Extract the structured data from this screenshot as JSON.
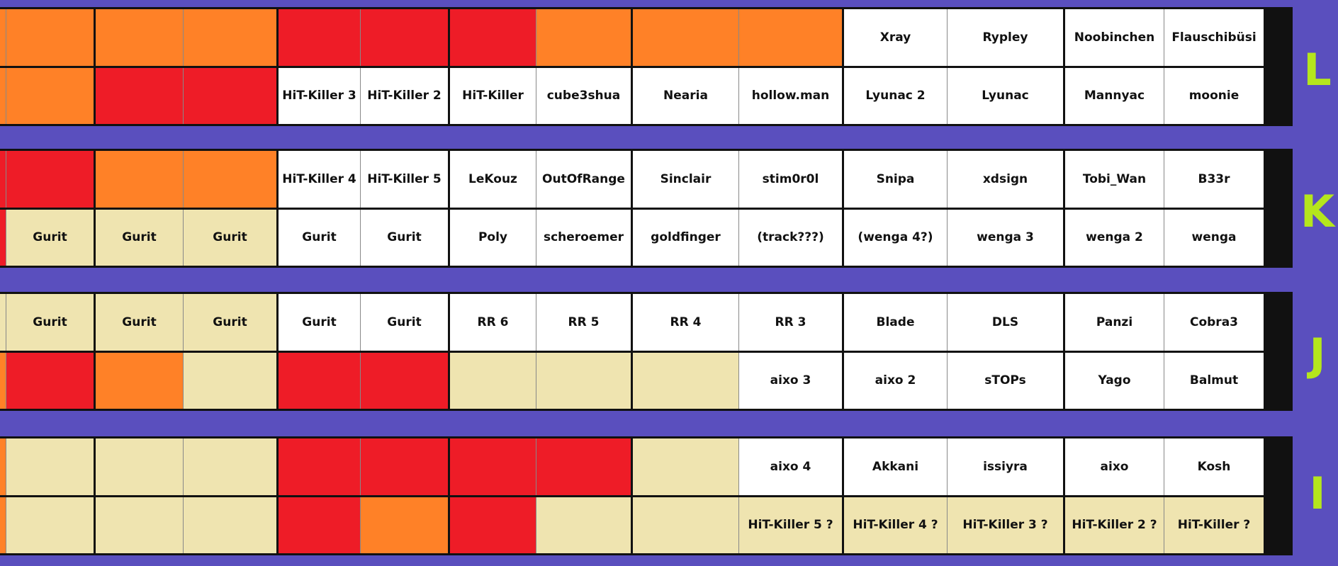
{
  "colors": {
    "background": "#5a4fbe",
    "white": "#ffffff",
    "orange": "#ff8127",
    "red": "#ee1c27",
    "tan": "#efe4b0",
    "letter": "#b5e61d"
  },
  "rows": [
    {
      "letter": "L",
      "top": [
        {
          "c": "o",
          "t": ""
        },
        {
          "c": "o",
          "t": ""
        },
        {
          "c": "o",
          "t": ""
        },
        {
          "c": "o",
          "t": ""
        },
        {
          "c": "r",
          "t": ""
        },
        {
          "c": "r",
          "t": ""
        },
        {
          "c": "r",
          "t": ""
        },
        {
          "c": "o",
          "t": ""
        },
        {
          "c": "o",
          "t": ""
        },
        {
          "c": "o",
          "t": ""
        },
        {
          "c": "w",
          "t": "Xray"
        },
        {
          "c": "w",
          "t": "Rypley"
        },
        {
          "c": "w",
          "t": "Noobinchen"
        },
        {
          "c": "w",
          "t": "Flauschibüsi"
        }
      ],
      "bottom": [
        {
          "c": "o",
          "t": ""
        },
        {
          "c": "o",
          "t": ""
        },
        {
          "c": "r",
          "t": ""
        },
        {
          "c": "r",
          "t": ""
        },
        {
          "c": "w",
          "t": "HiT-Killer 3"
        },
        {
          "c": "w",
          "t": "HiT-Killer 2"
        },
        {
          "c": "w",
          "t": "HiT-Killer"
        },
        {
          "c": "w",
          "t": "cube3shua"
        },
        {
          "c": "w",
          "t": "Nearia"
        },
        {
          "c": "w",
          "t": "hollow.man"
        },
        {
          "c": "w",
          "t": "Lyunac 2"
        },
        {
          "c": "w",
          "t": "Lyunac"
        },
        {
          "c": "w",
          "t": "Mannyac"
        },
        {
          "c": "w",
          "t": "moonie"
        }
      ]
    },
    {
      "letter": "K",
      "top": [
        {
          "c": "r",
          "t": ""
        },
        {
          "c": "r",
          "t": ""
        },
        {
          "c": "o",
          "t": ""
        },
        {
          "c": "o",
          "t": ""
        },
        {
          "c": "w",
          "t": "HiT-Killer 4"
        },
        {
          "c": "w",
          "t": "HiT-Killer 5"
        },
        {
          "c": "w",
          "t": "LeKouz"
        },
        {
          "c": "w",
          "t": "OutOfRange"
        },
        {
          "c": "w",
          "t": "Sinclair"
        },
        {
          "c": "w",
          "t": "stim0r0l"
        },
        {
          "c": "w",
          "t": "Snipa"
        },
        {
          "c": "w",
          "t": "xdsign"
        },
        {
          "c": "w",
          "t": "Tobi_Wan"
        },
        {
          "c": "w",
          "t": "B33r"
        }
      ],
      "bottom": [
        {
          "c": "r",
          "t": ""
        },
        {
          "c": "t",
          "t": "Gurit"
        },
        {
          "c": "t",
          "t": "Gurit"
        },
        {
          "c": "t",
          "t": "Gurit"
        },
        {
          "c": "w",
          "t": "Gurit"
        },
        {
          "c": "w",
          "t": "Gurit"
        },
        {
          "c": "w",
          "t": "Poly"
        },
        {
          "c": "w",
          "t": "scheroemer"
        },
        {
          "c": "w",
          "t": "goldfinger"
        },
        {
          "c": "w",
          "t": "(track???)"
        },
        {
          "c": "w",
          "t": "(wenga 4?)"
        },
        {
          "c": "w",
          "t": "wenga 3"
        },
        {
          "c": "w",
          "t": "wenga 2"
        },
        {
          "c": "w",
          "t": "wenga"
        }
      ]
    },
    {
      "letter": "J",
      "top": [
        {
          "c": "t",
          "t": ""
        },
        {
          "c": "t",
          "t": "Gurit"
        },
        {
          "c": "t",
          "t": "Gurit"
        },
        {
          "c": "t",
          "t": "Gurit"
        },
        {
          "c": "w",
          "t": "Gurit"
        },
        {
          "c": "w",
          "t": "Gurit"
        },
        {
          "c": "w",
          "t": "RR 6"
        },
        {
          "c": "w",
          "t": "RR 5"
        },
        {
          "c": "w",
          "t": "RR 4"
        },
        {
          "c": "w",
          "t": "RR 3"
        },
        {
          "c": "w",
          "t": "Blade"
        },
        {
          "c": "w",
          "t": "DLS"
        },
        {
          "c": "w",
          "t": "Panzi"
        },
        {
          "c": "w",
          "t": "Cobra3"
        }
      ],
      "bottom": [
        {
          "c": "o",
          "t": ""
        },
        {
          "c": "r",
          "t": ""
        },
        {
          "c": "o",
          "t": ""
        },
        {
          "c": "t",
          "t": ""
        },
        {
          "c": "r",
          "t": ""
        },
        {
          "c": "r",
          "t": ""
        },
        {
          "c": "t",
          "t": ""
        },
        {
          "c": "t",
          "t": ""
        },
        {
          "c": "t",
          "t": ""
        },
        {
          "c": "w",
          "t": "aixo 3"
        },
        {
          "c": "w",
          "t": "aixo 2"
        },
        {
          "c": "w",
          "t": "sTOPs"
        },
        {
          "c": "w",
          "t": "Yago"
        },
        {
          "c": "w",
          "t": "Balmut"
        }
      ]
    },
    {
      "letter": "I",
      "top": [
        {
          "c": "o",
          "t": ""
        },
        {
          "c": "t",
          "t": ""
        },
        {
          "c": "t",
          "t": ""
        },
        {
          "c": "t",
          "t": ""
        },
        {
          "c": "r",
          "t": ""
        },
        {
          "c": "r",
          "t": ""
        },
        {
          "c": "r",
          "t": ""
        },
        {
          "c": "r",
          "t": ""
        },
        {
          "c": "t",
          "t": ""
        },
        {
          "c": "w",
          "t": "aixo 4"
        },
        {
          "c": "w",
          "t": "Akkani"
        },
        {
          "c": "w",
          "t": "issiyra"
        },
        {
          "c": "w",
          "t": "aixo"
        },
        {
          "c": "w",
          "t": "Kosh"
        }
      ],
      "bottom": [
        {
          "c": "o",
          "t": ""
        },
        {
          "c": "t",
          "t": ""
        },
        {
          "c": "t",
          "t": ""
        },
        {
          "c": "t",
          "t": ""
        },
        {
          "c": "r",
          "t": ""
        },
        {
          "c": "o",
          "t": ""
        },
        {
          "c": "r",
          "t": ""
        },
        {
          "c": "t",
          "t": ""
        },
        {
          "c": "t",
          "t": ""
        },
        {
          "c": "t",
          "t": "HiT-Killer 5 ?"
        },
        {
          "c": "t",
          "t": "HiT-Killer 4 ?"
        },
        {
          "c": "t",
          "t": "HiT-Killer 3 ?"
        },
        {
          "c": "t",
          "t": "HiT-Killer 2 ?"
        },
        {
          "c": "t",
          "t": "HiT-Killer ?"
        }
      ]
    }
  ]
}
